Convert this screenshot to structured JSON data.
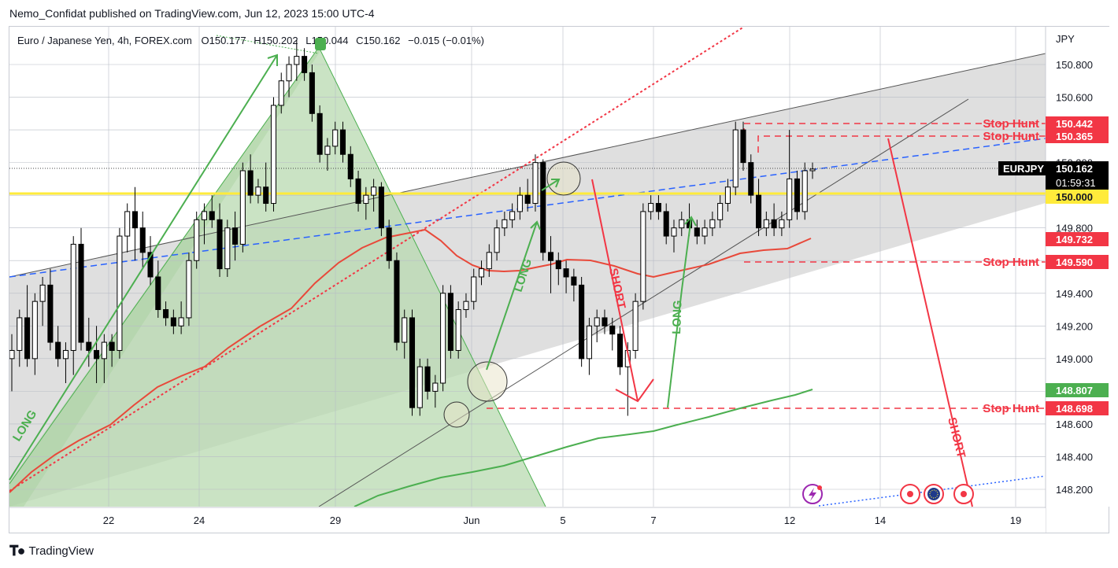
{
  "publisher_line": "Nemo_Confidat published on TradingView.com, Jun 12, 2023 15:00 UTC-4",
  "footer_brand": "TradingView",
  "legend": {
    "symbol": "Euro / Japanese Yen, 4h, FOREX.com",
    "o_label": "O",
    "o_value": "150.177",
    "h_label": "H",
    "h_value": "150.202",
    "l_label": "L",
    "l_value": "150.044",
    "c_label": "C",
    "c_value": "150.162",
    "change": "−0.015 (−0.01%)"
  },
  "axis": {
    "currency": "JPY",
    "y_ticks": [
      "150.800",
      "150.600",
      "150.400",
      "150.200",
      "150.000",
      "149.800",
      "149.600",
      "149.400",
      "149.200",
      "149.000",
      "148.800",
      "148.600",
      "148.400",
      "148.200"
    ],
    "x_ticks": [
      "22",
      "24",
      "29",
      "Jun",
      "5",
      "7",
      "12",
      "14",
      "19"
    ]
  },
  "price_tags": {
    "symbol": "EURJPY",
    "last_price": "150.162",
    "countdown": "01:59:31",
    "stop_hunt_1": "150.442",
    "stop_hunt_2": "150.365",
    "yellow_level": "150.000",
    "red_ma": "149.732",
    "stop_hunt_3": "149.590",
    "green_ma": "148.807",
    "stop_hunt_4": "148.698"
  },
  "annotations": {
    "stop_hunt": "Stop Hunt",
    "long": "LONG",
    "short": "SHORT"
  },
  "colors": {
    "up_candle": "#ffffff",
    "down_candle": "#000000",
    "red": "#f23645",
    "red_ma": "#e8493a",
    "green": "#4caf50",
    "blue_dash": "#2962ff",
    "yellow": "#ffeb3b",
    "gray_zone": "#d9d9d9",
    "green_zone": "#b8d9b0"
  },
  "chart_data": {
    "type": "candlestick",
    "symbol": "EURJPY",
    "timeframe": "4h",
    "x_tick_labels": [
      "22",
      "24",
      "29",
      "Jun",
      "5",
      "7",
      "12",
      "14",
      "19"
    ],
    "ylim": [
      148.0,
      150.95
    ],
    "stop_hunt_levels": [
      150.442,
      150.365,
      149.59,
      148.698
    ],
    "key_level": 150.0,
    "ma_red_last": 149.732,
    "ma_green_last": 148.807,
    "last": {
      "open": 150.177,
      "high": 150.202,
      "low": 150.044,
      "close": 150.162
    },
    "candles": [
      [
        149.0,
        149.15,
        148.8,
        149.05
      ],
      [
        149.05,
        149.3,
        148.95,
        149.25
      ],
      [
        149.25,
        149.45,
        148.95,
        149.0
      ],
      [
        149.0,
        149.4,
        148.9,
        149.35
      ],
      [
        149.35,
        149.5,
        149.2,
        149.45
      ],
      [
        149.45,
        149.55,
        149.05,
        149.1
      ],
      [
        149.1,
        149.2,
        148.95,
        149.0
      ],
      [
        149.0,
        149.1,
        148.85,
        149.05
      ],
      [
        149.05,
        149.75,
        148.9,
        149.7
      ],
      [
        149.7,
        149.8,
        149.05,
        149.1
      ],
      [
        149.1,
        149.25,
        148.95,
        149.05
      ],
      [
        149.05,
        149.2,
        148.85,
        149.0
      ],
      [
        149.0,
        149.15,
        148.85,
        149.1
      ],
      [
        149.1,
        149.15,
        148.95,
        149.05
      ],
      [
        149.05,
        149.8,
        149.0,
        149.75
      ],
      [
        149.75,
        149.95,
        149.65,
        149.9
      ],
      [
        149.9,
        150.05,
        149.6,
        149.8
      ],
      [
        149.8,
        149.9,
        149.55,
        149.65
      ],
      [
        149.65,
        149.75,
        149.45,
        149.5
      ],
      [
        149.5,
        149.6,
        149.25,
        149.3
      ],
      [
        149.3,
        149.35,
        149.2,
        149.25
      ],
      [
        149.25,
        149.3,
        149.15,
        149.2
      ],
      [
        149.2,
        149.35,
        149.15,
        149.25
      ],
      [
        149.25,
        149.65,
        149.2,
        149.6
      ],
      [
        149.6,
        149.9,
        149.55,
        149.85
      ],
      [
        149.85,
        149.95,
        149.7,
        149.9
      ],
      [
        149.9,
        150.0,
        149.8,
        149.85
      ],
      [
        149.85,
        149.95,
        149.5,
        149.55
      ],
      [
        149.55,
        149.85,
        149.5,
        149.8
      ],
      [
        149.8,
        149.9,
        149.6,
        149.7
      ],
      [
        149.7,
        150.2,
        149.65,
        150.15
      ],
      [
        150.15,
        150.25,
        149.95,
        150.0
      ],
      [
        150.0,
        150.1,
        149.95,
        150.05
      ],
      [
        150.05,
        150.2,
        149.9,
        149.95
      ],
      [
        149.95,
        150.6,
        149.9,
        150.55
      ],
      [
        150.55,
        150.75,
        150.5,
        150.7
      ],
      [
        150.7,
        150.85,
        150.6,
        150.8
      ],
      [
        150.8,
        150.95,
        150.7,
        150.85
      ],
      [
        150.85,
        150.9,
        150.7,
        150.75
      ],
      [
        150.75,
        150.8,
        150.45,
        150.5
      ],
      [
        150.5,
        150.55,
        150.2,
        150.25
      ],
      [
        150.25,
        150.35,
        150.15,
        150.3
      ],
      [
        150.3,
        150.45,
        150.25,
        150.4
      ],
      [
        150.4,
        150.45,
        150.2,
        150.25
      ],
      [
        150.25,
        150.3,
        150.05,
        150.1
      ],
      [
        150.1,
        150.15,
        149.9,
        149.95
      ],
      [
        149.95,
        150.05,
        149.85,
        150.0
      ],
      [
        150.0,
        150.1,
        149.9,
        150.05
      ],
      [
        150.05,
        150.08,
        149.75,
        149.8
      ],
      [
        149.8,
        149.85,
        149.55,
        149.6
      ],
      [
        149.6,
        149.65,
        149.05,
        149.1
      ],
      [
        149.1,
        149.3,
        149.0,
        149.25
      ],
      [
        149.25,
        149.3,
        148.65,
        148.7
      ],
      [
        148.7,
        149.0,
        148.65,
        148.95
      ],
      [
        148.95,
        149.0,
        148.75,
        148.8
      ],
      [
        148.8,
        148.9,
        148.7,
        148.85
      ],
      [
        148.85,
        149.45,
        148.8,
        149.4
      ],
      [
        149.4,
        149.45,
        149.0,
        149.05
      ],
      [
        149.05,
        149.35,
        149.0,
        149.3
      ],
      [
        149.3,
        149.4,
        149.25,
        149.35
      ],
      [
        149.35,
        149.55,
        149.3,
        149.5
      ],
      [
        149.5,
        149.6,
        149.45,
        149.55
      ],
      [
        149.55,
        149.7,
        149.5,
        149.65
      ],
      [
        149.65,
        149.85,
        149.6,
        149.8
      ],
      [
        149.8,
        149.9,
        149.75,
        149.85
      ],
      [
        149.85,
        149.95,
        149.8,
        149.9
      ],
      [
        149.9,
        150.05,
        149.85,
        150.0
      ],
      [
        150.0,
        150.1,
        149.9,
        149.95
      ],
      [
        149.95,
        150.25,
        149.9,
        150.2
      ],
      [
        150.2,
        150.22,
        149.6,
        149.65
      ],
      [
        149.65,
        149.75,
        149.4,
        149.6
      ],
      [
        149.6,
        149.65,
        149.45,
        149.55
      ],
      [
        149.55,
        149.6,
        149.4,
        149.5
      ],
      [
        149.5,
        149.55,
        149.35,
        149.45
      ],
      [
        149.45,
        149.5,
        148.95,
        149.0
      ],
      [
        149.0,
        149.25,
        148.9,
        149.2
      ],
      [
        149.2,
        149.3,
        149.1,
        149.25
      ],
      [
        149.25,
        149.3,
        149.15,
        149.2
      ],
      [
        149.2,
        149.25,
        149.05,
        149.15
      ],
      [
        149.15,
        149.2,
        148.9,
        148.95
      ],
      [
        148.95,
        149.1,
        148.65,
        149.05
      ],
      [
        149.05,
        149.4,
        149.0,
        149.35
      ],
      [
        149.35,
        149.95,
        149.3,
        149.9
      ],
      [
        149.9,
        150.0,
        149.85,
        149.95
      ],
      [
        149.95,
        150.0,
        149.85,
        149.9
      ],
      [
        149.9,
        149.95,
        149.7,
        149.75
      ],
      [
        149.75,
        149.85,
        149.65,
        149.8
      ],
      [
        149.8,
        149.9,
        149.75,
        149.85
      ],
      [
        149.85,
        149.95,
        149.75,
        149.8
      ],
      [
        149.8,
        149.85,
        149.7,
        149.75
      ],
      [
        149.75,
        149.85,
        149.7,
        149.8
      ],
      [
        149.8,
        149.9,
        149.75,
        149.85
      ],
      [
        149.85,
        150.0,
        149.8,
        149.95
      ],
      [
        149.95,
        150.1,
        149.9,
        150.05
      ],
      [
        150.05,
        150.45,
        150.0,
        150.4
      ],
      [
        150.4,
        150.45,
        150.15,
        150.2
      ],
      [
        150.2,
        150.25,
        149.95,
        150.0
      ],
      [
        150.0,
        150.1,
        149.75,
        149.8
      ],
      [
        149.8,
        149.9,
        149.75,
        149.85
      ],
      [
        149.85,
        149.95,
        149.75,
        149.8
      ],
      [
        149.8,
        149.9,
        149.75,
        149.85
      ],
      [
        149.85,
        150.4,
        149.8,
        150.1
      ],
      [
        150.1,
        150.15,
        149.85,
        149.9
      ],
      [
        149.9,
        150.2,
        149.85,
        150.15
      ],
      [
        150.15,
        150.2,
        150.1,
        150.16
      ]
    ]
  }
}
